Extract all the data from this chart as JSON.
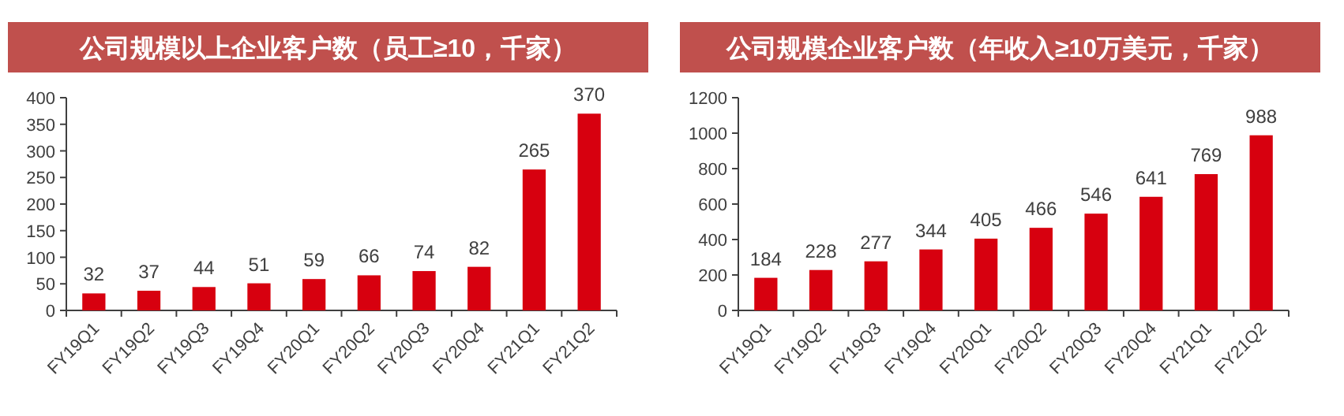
{
  "chart_data": [
    {
      "type": "bar",
      "title": "公司规模以上企业客户数（员工≥10，千家）",
      "categories": [
        "FY19Q1",
        "FY19Q2",
        "FY19Q3",
        "FY19Q4",
        "FY20Q1",
        "FY20Q2",
        "FY20Q3",
        "FY20Q4",
        "FY21Q1",
        "FY21Q2"
      ],
      "values": [
        32,
        37,
        44,
        51,
        59,
        66,
        74,
        82,
        265,
        370
      ],
      "color": "#d7000f",
      "ylim": [
        0,
        400
      ],
      "yticks": [
        0,
        50,
        100,
        150,
        200,
        250,
        300,
        350,
        400
      ],
      "data_labels": true
    },
    {
      "type": "bar",
      "title": "公司规模企业客户数（年收入≥10万美元，千家）",
      "categories": [
        "FY19Q1",
        "FY19Q2",
        "FY19Q3",
        "FY19Q4",
        "FY20Q1",
        "FY20Q2",
        "FY20Q3",
        "FY20Q4",
        "FY21Q1",
        "FY21Q2"
      ],
      "values": [
        184,
        228,
        277,
        344,
        405,
        466,
        546,
        641,
        769,
        988
      ],
      "color": "#d7000f",
      "ylim": [
        0,
        1200
      ],
      "yticks": [
        0,
        200,
        400,
        600,
        800,
        1000,
        1200
      ],
      "data_labels": true
    }
  ]
}
